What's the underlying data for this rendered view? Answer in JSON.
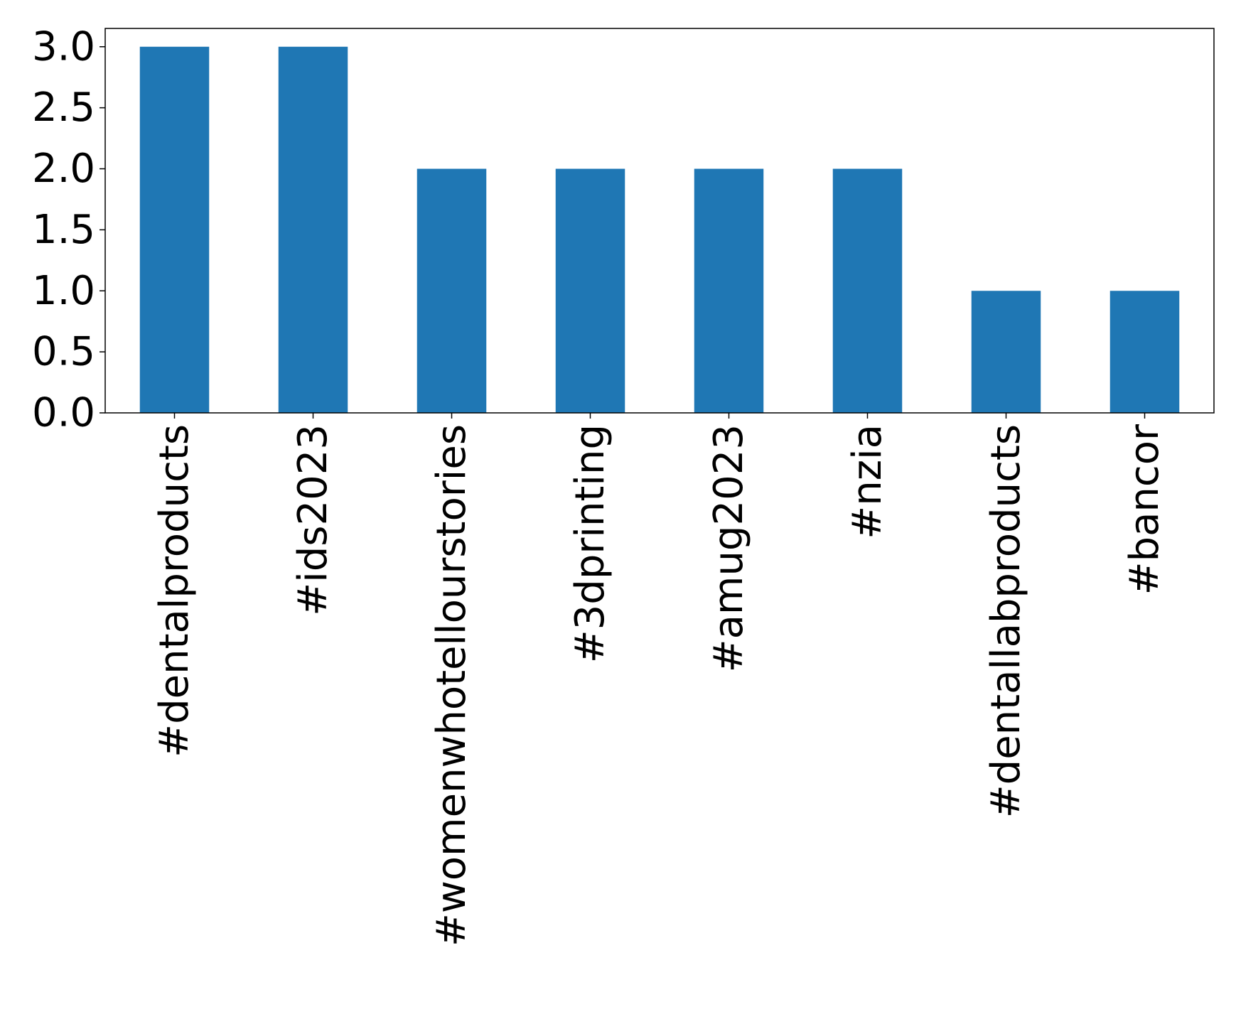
{
  "chart_data": {
    "type": "bar",
    "categories": [
      "#dentalproducts",
      "#ids2023",
      "#womenwhotellourstories",
      "#3dprinting",
      "#amug2023",
      "#nzia",
      "#dentallabproducts",
      "#bancor"
    ],
    "values": [
      3,
      3,
      2,
      2,
      2,
      2,
      1,
      1
    ],
    "color": "#1f77b4",
    "ylim": [
      0,
      3.15
    ],
    "yticks": [
      {
        "value": 0,
        "label": "0.0"
      },
      {
        "value": 0.5,
        "label": "0.5"
      },
      {
        "value": 1,
        "label": "1.0"
      },
      {
        "value": 1.5,
        "label": "1.5"
      },
      {
        "value": 2,
        "label": "2.0"
      },
      {
        "value": 2.5,
        "label": "2.5"
      },
      {
        "value": 3,
        "label": "3.0"
      }
    ],
    "grid": false
  }
}
